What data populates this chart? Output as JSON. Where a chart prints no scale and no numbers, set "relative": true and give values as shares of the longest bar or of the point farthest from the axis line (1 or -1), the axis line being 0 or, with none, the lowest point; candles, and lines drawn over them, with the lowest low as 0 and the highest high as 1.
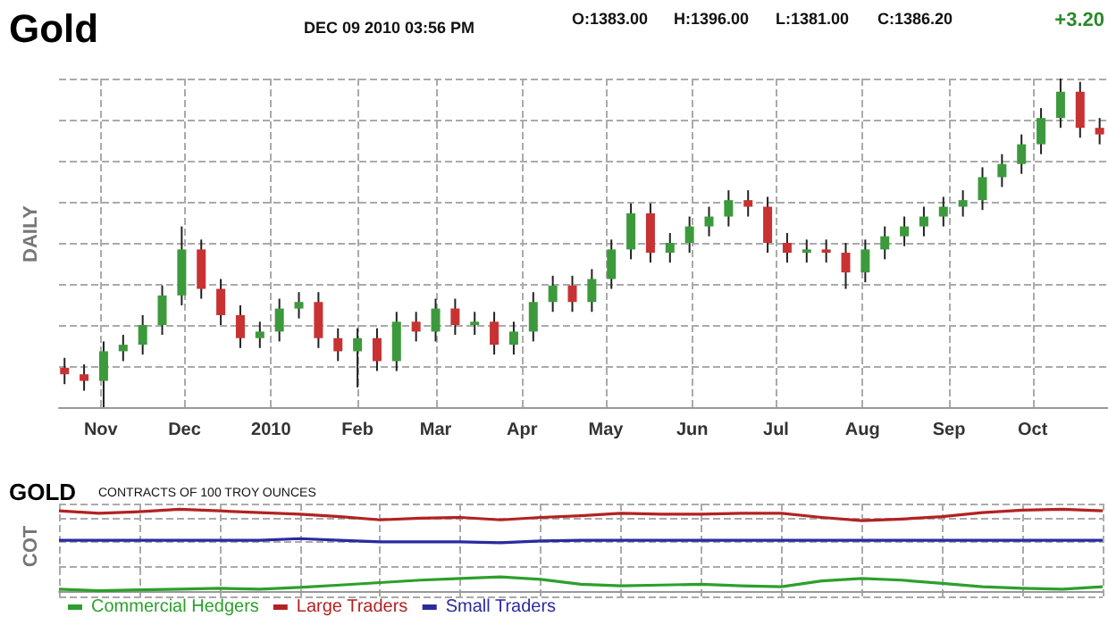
{
  "chart_data": [
    {
      "type": "candlestick",
      "title": "Gold",
      "subtitle": "DEC 09 2010 03:56 PM",
      "ylabel": "DAILY",
      "relative": true,
      "grid": true,
      "annotations": [
        "O:1383.00",
        "H:1396.00",
        "L:1381.00",
        "C:1386.20",
        "+3.20"
      ],
      "xlim": [
        "2009-10-17",
        "2010-10-28"
      ],
      "xticks": [
        {
          "value": "2009-11-01",
          "label": "Nov"
        },
        {
          "value": "2009-12-01",
          "label": "Dec"
        },
        {
          "value": "2010-01-01",
          "label": "2010"
        },
        {
          "value": "2010-02-01",
          "label": "Feb"
        },
        {
          "value": "2010-03-01",
          "label": "Mar"
        },
        {
          "value": "2010-04-01",
          "label": "Apr"
        },
        {
          "value": "2010-05-01",
          "label": "May"
        },
        {
          "value": "2010-06-01",
          "label": "Jun"
        },
        {
          "value": "2010-07-01",
          "label": "Jul"
        },
        {
          "value": "2010-08-01",
          "label": "Aug"
        },
        {
          "value": "2010-09-01",
          "label": "Sep"
        },
        {
          "value": "2010-10-01",
          "label": "Oct"
        }
      ],
      "x": [
        "2009-10-19",
        "2009-10-26",
        "2009-11-02",
        "2009-11-09",
        "2009-11-16",
        "2009-11-23",
        "2009-11-30",
        "2009-12-07",
        "2009-12-14",
        "2009-12-21",
        "2009-12-28",
        "2010-01-04",
        "2010-01-11",
        "2010-01-18",
        "2010-01-25",
        "2010-02-01",
        "2010-02-08",
        "2010-02-15",
        "2010-02-22",
        "2010-03-01",
        "2010-03-08",
        "2010-03-15",
        "2010-03-22",
        "2010-03-29",
        "2010-04-05",
        "2010-04-12",
        "2010-04-19",
        "2010-04-26",
        "2010-05-03",
        "2010-05-10",
        "2010-05-17",
        "2010-05-24",
        "2010-05-31",
        "2010-06-07",
        "2010-06-14",
        "2010-06-21",
        "2010-06-28",
        "2010-07-05",
        "2010-07-12",
        "2010-07-19",
        "2010-07-26",
        "2010-08-02",
        "2010-08-09",
        "2010-08-16",
        "2010-08-23",
        "2010-08-30",
        "2010-09-06",
        "2010-09-13",
        "2010-09-20",
        "2010-09-27",
        "2010-10-04",
        "2010-10-11",
        "2010-10-18",
        "2010-10-25"
      ],
      "ohlc": [
        [
          0.12,
          0.15,
          0.07,
          0.1
        ],
        [
          0.1,
          0.13,
          0.05,
          0.08
        ],
        [
          0.08,
          0.2,
          0,
          0.17
        ],
        [
          0.17,
          0.22,
          0.14,
          0.19
        ],
        [
          0.19,
          0.28,
          0.16,
          0.25
        ],
        [
          0.25,
          0.37,
          0.22,
          0.34
        ],
        [
          0.34,
          0.55,
          0.31,
          0.48
        ],
        [
          0.48,
          0.51,
          0.33,
          0.36
        ],
        [
          0.36,
          0.39,
          0.25,
          0.28
        ],
        [
          0.28,
          0.31,
          0.18,
          0.21
        ],
        [
          0.21,
          0.26,
          0.18,
          0.23
        ],
        [
          0.23,
          0.33,
          0.2,
          0.3
        ],
        [
          0.3,
          0.35,
          0.27,
          0.32
        ],
        [
          0.32,
          0.35,
          0.18,
          0.21
        ],
        [
          0.21,
          0.24,
          0.14,
          0.17
        ],
        [
          0.17,
          0.24,
          0.06,
          0.21
        ],
        [
          0.21,
          0.24,
          0.11,
          0.14
        ],
        [
          0.14,
          0.29,
          0.11,
          0.26
        ],
        [
          0.26,
          0.29,
          0.2,
          0.23
        ],
        [
          0.23,
          0.33,
          0.2,
          0.3
        ],
        [
          0.3,
          0.33,
          0.22,
          0.25
        ],
        [
          0.25,
          0.29,
          0.22,
          0.26
        ],
        [
          0.26,
          0.29,
          0.16,
          0.19
        ],
        [
          0.19,
          0.26,
          0.16,
          0.23
        ],
        [
          0.23,
          0.35,
          0.2,
          0.32
        ],
        [
          0.32,
          0.4,
          0.29,
          0.37
        ],
        [
          0.37,
          0.4,
          0.29,
          0.32
        ],
        [
          0.32,
          0.42,
          0.29,
          0.39
        ],
        [
          0.39,
          0.51,
          0.36,
          0.48
        ],
        [
          0.48,
          0.62,
          0.45,
          0.59
        ],
        [
          0.59,
          0.62,
          0.44,
          0.47
        ],
        [
          0.47,
          0.53,
          0.44,
          0.5
        ],
        [
          0.5,
          0.58,
          0.47,
          0.55
        ],
        [
          0.55,
          0.61,
          0.52,
          0.58
        ],
        [
          0.58,
          0.66,
          0.55,
          0.63
        ],
        [
          0.63,
          0.66,
          0.58,
          0.61
        ],
        [
          0.61,
          0.64,
          0.47,
          0.5
        ],
        [
          0.5,
          0.53,
          0.44,
          0.47
        ],
        [
          0.47,
          0.51,
          0.44,
          0.48
        ],
        [
          0.48,
          0.51,
          0.44,
          0.47
        ],
        [
          0.47,
          0.5,
          0.36,
          0.41
        ],
        [
          0.41,
          0.51,
          0.38,
          0.48
        ],
        [
          0.48,
          0.55,
          0.45,
          0.52
        ],
        [
          0.52,
          0.58,
          0.49,
          0.55
        ],
        [
          0.55,
          0.61,
          0.52,
          0.58
        ],
        [
          0.58,
          0.64,
          0.55,
          0.61
        ],
        [
          0.61,
          0.66,
          0.58,
          0.63
        ],
        [
          0.63,
          0.73,
          0.6,
          0.7
        ],
        [
          0.7,
          0.77,
          0.67,
          0.74
        ],
        [
          0.74,
          0.83,
          0.71,
          0.8
        ],
        [
          0.8,
          0.91,
          0.77,
          0.88
        ],
        [
          0.88,
          1,
          0.85,
          0.96
        ],
        [
          0.96,
          0.99,
          0.82,
          0.85
        ],
        [
          0.85,
          0.88,
          0.8,
          0.83
        ]
      ]
    },
    {
      "type": "line",
      "title": "GOLD",
      "subtitle": "CONTRACTS OF 100 TROY OUNCES",
      "ylabel": "COT",
      "relative": true,
      "grid": true,
      "legend": "bottom left",
      "categories": [
        null,
        null,
        null,
        null,
        null,
        null,
        null,
        null,
        null,
        null,
        null,
        null,
        null,
        null,
        null,
        null,
        null,
        null,
        null,
        null,
        null,
        null,
        null,
        null,
        null,
        null,
        null
      ],
      "series": [
        {
          "name": "Commercial Hedgers",
          "color": "#2ca02c",
          "values": [
            0.02,
            0,
            0.01,
            0.02,
            0.03,
            0.02,
            0.04,
            0.07,
            0.1,
            0.13,
            0.15,
            0.17,
            0.14,
            0.08,
            0.06,
            0.07,
            0.08,
            0.06,
            0.05,
            0.12,
            0.15,
            0.13,
            0.09,
            0.05,
            0.03,
            0.02,
            0.05
          ]
        },
        {
          "name": "Large Traders",
          "color": "#b22222",
          "values": [
            0.98,
            0.95,
            0.97,
            1,
            0.98,
            0.96,
            0.94,
            0.91,
            0.87,
            0.89,
            0.9,
            0.87,
            0.9,
            0.92,
            0.95,
            0.94,
            0.94,
            0.95,
            0.95,
            0.9,
            0.86,
            0.88,
            0.91,
            0.96,
            0.99,
            1,
            0.98
          ]
        },
        {
          "name": "Small Traders",
          "color": "#2a2aa0",
          "values": [
            0.62,
            0.62,
            0.62,
            0.62,
            0.62,
            0.62,
            0.64,
            0.62,
            0.6,
            0.6,
            0.6,
            0.59,
            0.61,
            0.62,
            0.62,
            0.62,
            0.62,
            0.62,
            0.62,
            0.62,
            0.62,
            0.62,
            0.62,
            0.62,
            0.62,
            0.62,
            0.62
          ]
        }
      ]
    }
  ]
}
